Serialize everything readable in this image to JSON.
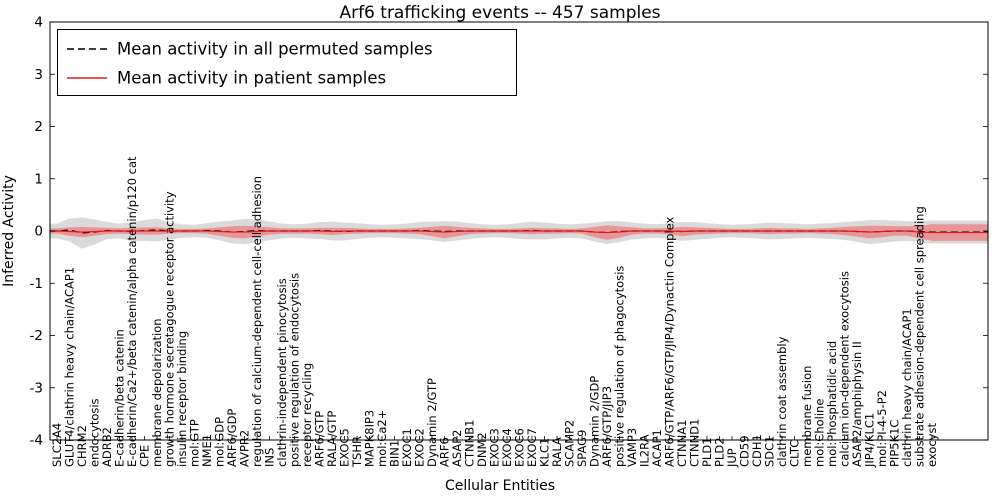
{
  "chart_data": {
    "type": "line",
    "title": "Arf6 trafficking events -- 457 samples",
    "xlabel": "Cellular Entities",
    "ylabel": "Inferred Activity",
    "ylim": [
      -4,
      4
    ],
    "grid": false,
    "legend_position": "upper left",
    "ytick_values": [
      4,
      3,
      2,
      1,
      0,
      -1,
      -2,
      -3,
      -4
    ],
    "ytick_labels": [
      "4",
      "3",
      "2",
      "1",
      "0",
      "-1",
      "-2",
      "-3",
      "-4"
    ],
    "legend": [
      {
        "label": "Mean activity in all permuted samples"
      },
      {
        "label": "Mean activity in patient samples"
      }
    ],
    "categories": [
      "SLC2A4",
      "GLUT4/clathrin heavy chain/ACAP1",
      "CHRM2",
      "endocytosis",
      "ADRB2",
      "E-cadherin/beta catenin",
      "E-cadherin/Ca2+/beta catenin/alpha catenin/p120 cat",
      "CPE",
      "membrane depolarization",
      "growth hormone secretagogue receptor activity",
      "insulin receptor binding",
      "mol:GTP",
      "NME1",
      "mol:GDP",
      "ARF6/GDP",
      "AVPR2",
      "regulation of calcium-dependent cell-cell adhesion",
      "INS",
      "clathrin-independent pinocytosis",
      "positive regulation of endocytosis",
      "receptor recycling",
      "ARF6/GTP",
      "RALA/GTP",
      "EXOC5",
      "TSHR",
      "MAPK8IP3",
      "mol:Ca2+",
      "BIN1",
      "EXOC1",
      "EXOC2",
      "Dynamin 2/GTP",
      "ARF6",
      "ASAP2",
      "CTNNB1",
      "DNM2",
      "EXOC3",
      "EXOC4",
      "EXOC6",
      "EXOC7",
      "KLC1",
      "RALA",
      "SCAMP2",
      "SPAG9",
      "Dynamin 2/GDP",
      "ARF6/GTP/JIP3",
      "positive regulation of phagocytosis",
      "VAMP3",
      "IL2RA",
      "ACAP1",
      "ARF6/GTP/ARF6/GTP/JIP4/Dynactin Complex",
      "CTNNA1",
      "CTNND1",
      "PLD1",
      "PLD2",
      "JUP",
      "CD59",
      "CDH1",
      "SDC1",
      "clathrin coat assembly",
      "CLTC",
      "membrane fusion",
      "mol:Choline",
      "mol:Phosphatidic acid",
      "calcium ion-dependent exocytosis",
      "ASAP2/amphiphysin II",
      "JIP4/KLC1",
      "mol:PI-4-5-P2",
      "PIP5K1C",
      "clathrin heavy chain/ACAP1",
      "substrate adhesion-dependent cell spreading",
      "exocyst"
    ],
    "series": [
      {
        "name": "Mean activity in all permuted samples",
        "line_name": "permuted-mean-line",
        "band_name": "permuted-std-band",
        "color": "#000000",
        "band_color": "#d6d6d6",
        "band_opacity": 0.9,
        "dash": "7 4",
        "values": [
          0,
          0.02,
          -0.04,
          -0.02,
          0.01,
          0,
          -0.01,
          0.01,
          0.02,
          0,
          0,
          0,
          0.01,
          0,
          -0.02,
          -0.01,
          0.01,
          0,
          0,
          0,
          0,
          0.01,
          0,
          -0.01,
          0,
          0,
          0,
          0,
          0,
          0.01,
          0,
          -0.01,
          0,
          0,
          0,
          0,
          0,
          0,
          0.01,
          0,
          0,
          0,
          0,
          -0.02,
          -0.03,
          -0.01,
          0,
          0,
          0,
          0,
          -0.01,
          0,
          0,
          0,
          0,
          0,
          0,
          0,
          0,
          0,
          0,
          0,
          0,
          0,
          -0.01,
          -0.02,
          -0.01,
          0,
          0,
          -0.01,
          -0.02
        ],
        "band_halfwidth": [
          0.14,
          0.22,
          0.3,
          0.24,
          0.16,
          0.14,
          0.18,
          0.2,
          0.22,
          0.16,
          0.13,
          0.12,
          0.14,
          0.18,
          0.22,
          0.24,
          0.22,
          0.18,
          0.14,
          0.13,
          0.14,
          0.16,
          0.18,
          0.17,
          0.15,
          0.13,
          0.12,
          0.13,
          0.14,
          0.16,
          0.18,
          0.2,
          0.18,
          0.15,
          0.13,
          0.12,
          0.13,
          0.15,
          0.17,
          0.16,
          0.14,
          0.13,
          0.14,
          0.18,
          0.22,
          0.2,
          0.16,
          0.14,
          0.13,
          0.15,
          0.18,
          0.17,
          0.15,
          0.13,
          0.12,
          0.13,
          0.14,
          0.16,
          0.15,
          0.14,
          0.13,
          0.14,
          0.15,
          0.17,
          0.2,
          0.23,
          0.22,
          0.2,
          0.19,
          0.2,
          0.22
        ]
      },
      {
        "name": "Mean activity in patient samples",
        "line_name": "patient-mean-line",
        "band_name": "patient-std-band",
        "color": "#d62020",
        "band_color": "#ec8888",
        "band_opacity": 0.85,
        "dash": "",
        "values": [
          0,
          -0.01,
          -0.02,
          -0.01,
          0,
          0,
          0,
          0,
          0,
          0,
          0,
          0,
          0,
          -0.01,
          -0.02,
          -0.02,
          -0.01,
          0,
          0,
          0,
          0,
          0,
          -0.01,
          0,
          0,
          0,
          0,
          0,
          0,
          0,
          -0.01,
          -0.02,
          -0.01,
          0,
          0,
          0,
          0,
          0,
          0,
          0,
          0,
          0,
          0,
          -0.02,
          -0.03,
          -0.02,
          0,
          0,
          0,
          0,
          -0.01,
          0,
          0,
          0,
          0,
          0,
          0,
          0,
          0,
          0,
          0,
          0,
          0,
          0,
          -0.01,
          -0.02,
          -0.01,
          0,
          0,
          -0.02,
          -0.03
        ],
        "band_halfwidth": [
          0.05,
          0.08,
          0.1,
          0.08,
          0.06,
          0.05,
          0.06,
          0.07,
          0.07,
          0.05,
          0.04,
          0.04,
          0.05,
          0.08,
          0.11,
          0.12,
          0.1,
          0.07,
          0.05,
          0.05,
          0.05,
          0.06,
          0.07,
          0.06,
          0.05,
          0.04,
          0.04,
          0.04,
          0.05,
          0.06,
          0.09,
          0.12,
          0.09,
          0.06,
          0.05,
          0.04,
          0.04,
          0.05,
          0.06,
          0.05,
          0.05,
          0.04,
          0.05,
          0.1,
          0.14,
          0.11,
          0.07,
          0.05,
          0.05,
          0.06,
          0.09,
          0.07,
          0.06,
          0.05,
          0.04,
          0.04,
          0.05,
          0.06,
          0.05,
          0.05,
          0.04,
          0.05,
          0.06,
          0.08,
          0.1,
          0.12,
          0.11,
          0.09,
          0.09,
          0.12,
          0.16
        ]
      }
    ]
  }
}
